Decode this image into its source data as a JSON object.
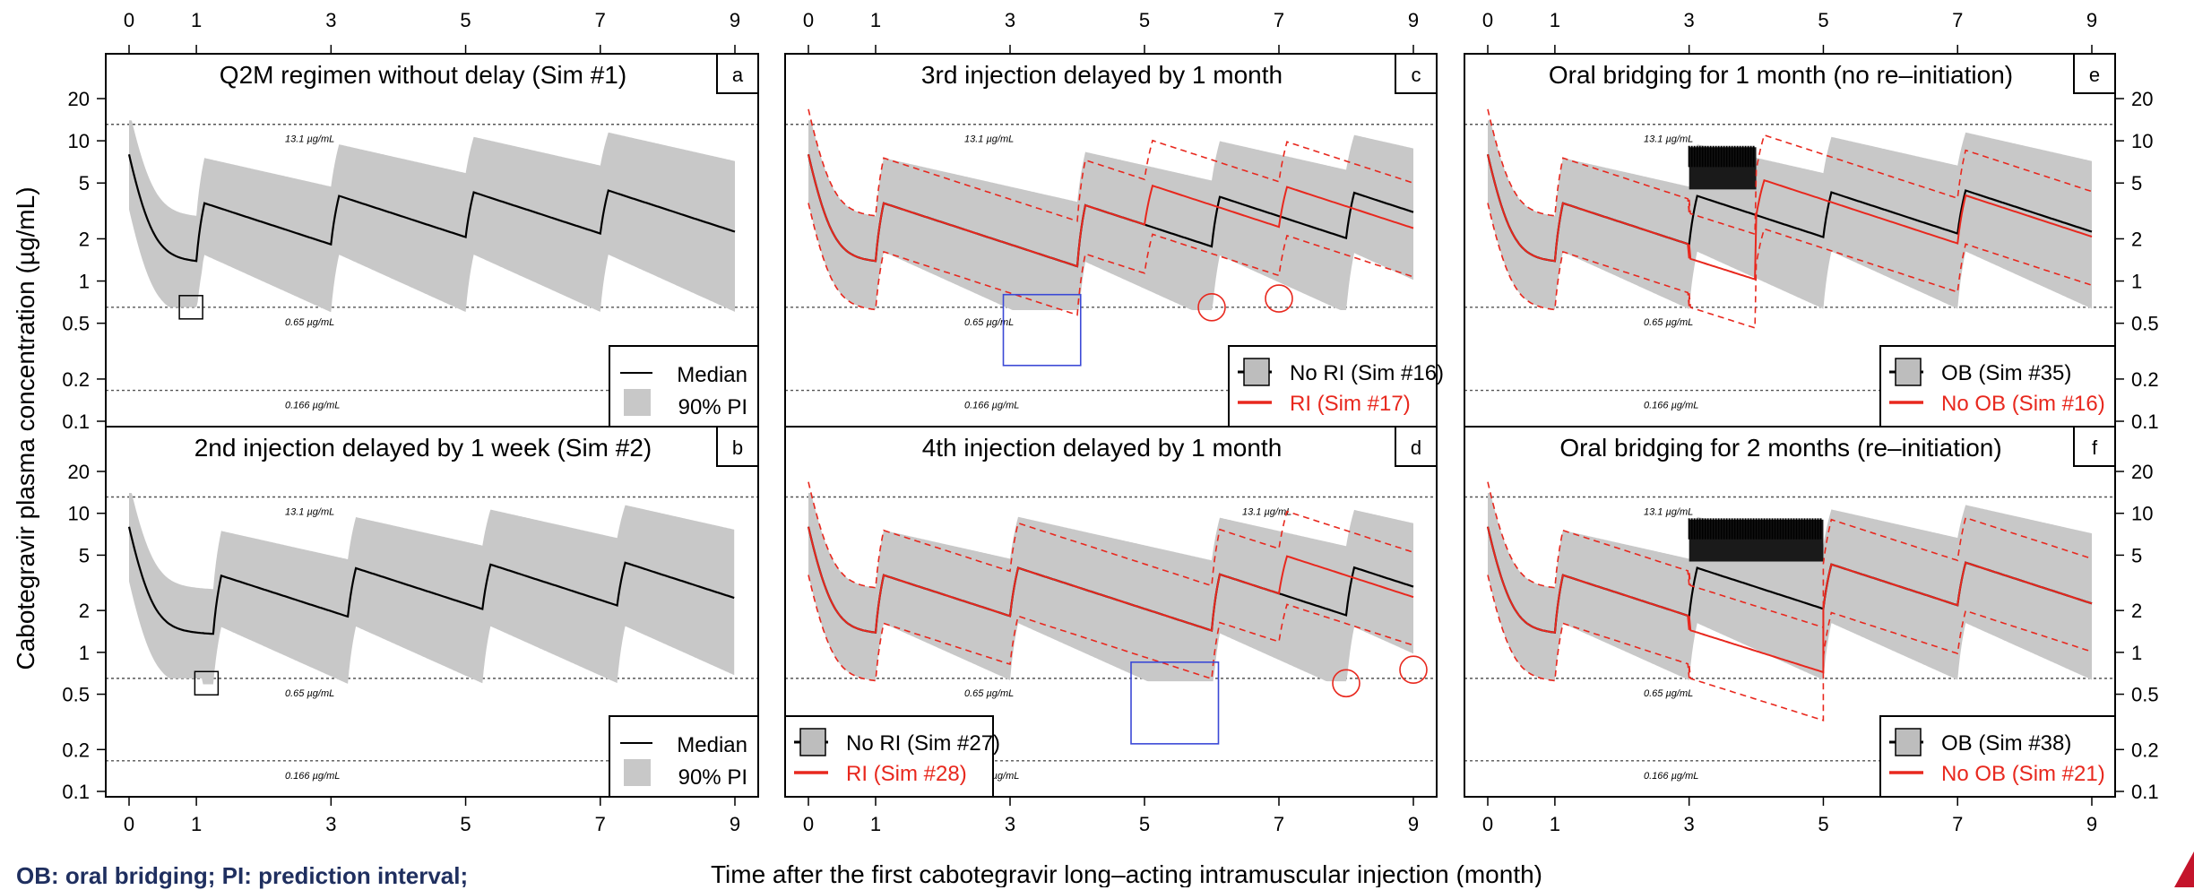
{
  "figure": {
    "ylabel": "Cabotegravir plasma concentration (µg/mL)",
    "xlabel": "Time after the first cabotegravir long–acting intramuscular injection (month)",
    "footnote": "OB: oral bridging; PI: prediction interval;",
    "x_ticks": [
      0,
      1,
      3,
      5,
      7,
      9
    ],
    "y_ticks": [
      0.1,
      0.2,
      0.5,
      1,
      2,
      5,
      10,
      20
    ],
    "y_tick_labels": [
      "0.1",
      "0.2",
      "0.5",
      "1",
      "2",
      "5",
      "10",
      "20"
    ],
    "reference_lines": [
      {
        "value": 13.1,
        "label": "13.1 µg/mL"
      },
      {
        "value": 0.65,
        "label": "0.65 µg/mL"
      },
      {
        "value": 0.166,
        "label": "0.166 µg/mL"
      }
    ],
    "colors": {
      "median": "#000000",
      "band": "#c8c8c8",
      "alt": "#e8281e",
      "highlight": "#3b49d6"
    }
  },
  "chart_data": [
    {
      "panel": "a",
      "type": "area",
      "title": "Q2M regimen without delay (Sim #1)",
      "x_range": [
        0,
        9
      ],
      "y_range": [
        0.1,
        20
      ],
      "y_scale": "log",
      "injections": [
        0,
        1,
        3,
        5,
        7
      ],
      "series": [
        {
          "name": "Median",
          "peak": 8,
          "trough_before_2nd": 1.35,
          "values_at_trough": [
            1.35,
            1.5,
            1.6,
            1.65
          ]
        },
        {
          "name": "90% PI",
          "lower_trough": 0.65,
          "upper_peak": 6.5
        }
      ],
      "legend": [
        "Median",
        "90% PI"
      ],
      "markers": [
        {
          "shape": "square",
          "x": 0.92,
          "y": 0.65
        }
      ]
    },
    {
      "panel": "b",
      "type": "area",
      "title": "2nd injection delayed by 1 week (Sim #2)",
      "x_range": [
        0,
        9
      ],
      "y_range": [
        0.1,
        20
      ],
      "y_scale": "log",
      "injections": [
        0,
        1.25,
        3.25,
        5.25,
        7.25
      ],
      "legend": [
        "Median",
        "90% PI"
      ],
      "markers": [
        {
          "shape": "square",
          "x": 1.15,
          "y": 0.6
        }
      ]
    },
    {
      "panel": "c",
      "type": "area",
      "title": "3rd injection delayed by 1 month",
      "x_range": [
        0,
        9
      ],
      "y_range": [
        0.1,
        20
      ],
      "y_scale": "log",
      "injections_no_ri": [
        0,
        1,
        4,
        6,
        8
      ],
      "injections_ri": [
        0,
        1,
        4,
        5,
        7
      ],
      "legend": [
        "No RI (Sim #16)",
        "RI (Sim #17)"
      ],
      "markers": [
        {
          "shape": "rect",
          "x": [
            2.9,
            4.05
          ],
          "y": [
            0.25,
            0.8
          ]
        },
        {
          "shape": "circle",
          "x": 6,
          "y": 0.65
        },
        {
          "shape": "circle",
          "x": 7,
          "y": 0.75
        }
      ]
    },
    {
      "panel": "d",
      "type": "area",
      "title": "4th injection delayed by 1 month",
      "x_range": [
        0,
        9
      ],
      "y_range": [
        0.1,
        20
      ],
      "y_scale": "log",
      "injections_no_ri": [
        0,
        1,
        3,
        6,
        8
      ],
      "injections_ri": [
        0,
        1,
        3,
        6,
        7
      ],
      "legend": [
        "No RI (Sim #27)",
        "RI (Sim #28)"
      ],
      "markers": [
        {
          "shape": "rect",
          "x": [
            4.8,
            6.1
          ],
          "y": [
            0.22,
            0.85
          ]
        },
        {
          "shape": "circle",
          "x": 8,
          "y": 0.6
        },
        {
          "shape": "circle",
          "x": 9,
          "y": 0.75
        }
      ]
    },
    {
      "panel": "e",
      "type": "area",
      "title": "Oral bridging for 1 month (no re–initiation)",
      "x_range": [
        0,
        9
      ],
      "y_range": [
        0.1,
        20
      ],
      "y_scale": "log",
      "oral_window": [
        3,
        4
      ],
      "legend": [
        "OB (Sim #35)",
        "No OB (Sim #16)"
      ]
    },
    {
      "panel": "f",
      "type": "area",
      "title": "Oral bridging for 2 months (re–initiation)",
      "x_range": [
        0,
        9
      ],
      "y_range": [
        0.1,
        20
      ],
      "y_scale": "log",
      "oral_window": [
        3,
        5
      ],
      "legend": [
        "OB (Sim #38)",
        "No OB (Sim #21)"
      ]
    }
  ]
}
